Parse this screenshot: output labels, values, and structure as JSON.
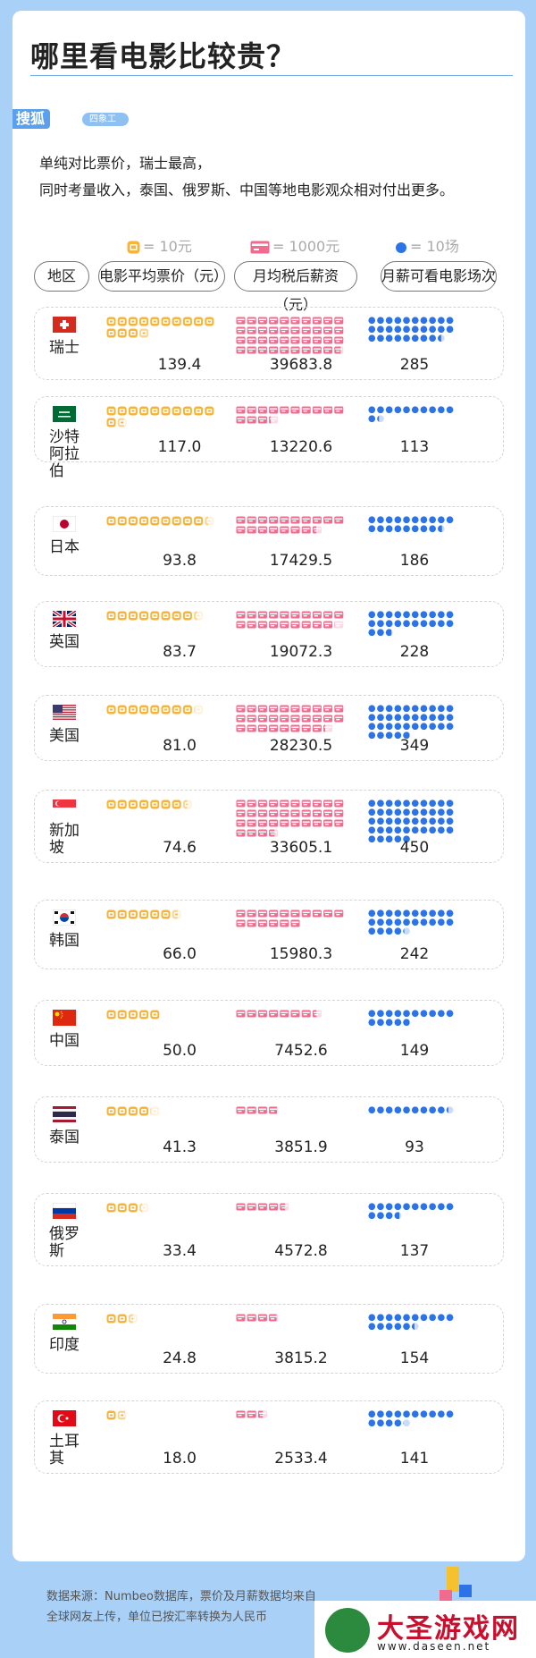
{
  "title": "哪里看电影比较贵？",
  "brand": {
    "logo": "搜狐",
    "studio": "四象工作室"
  },
  "subtitle": [
    "单纯对比票价，瑞士最高，",
    "同时考量收入，泰国、俄罗斯、中国等地电影观众相对付出更多。"
  ],
  "legend": {
    "ticket": "= 10元",
    "salary": "= 1000元",
    "movies": "= 10场"
  },
  "columns": [
    "地区",
    "电影平均票价（元）",
    "月均税后薪资（元）",
    "月薪可看电影场次"
  ],
  "colors": {
    "ticket": "#f6b43a",
    "salary": "#f06b8e",
    "movies": "#2d73e8",
    "accent": "#5aa0ec"
  },
  "chart_data": {
    "type": "table",
    "title": "哪里看电影比较贵？",
    "categories": [
      "瑞士",
      "沙特阿拉伯",
      "日本",
      "英国",
      "美国",
      "新加坡",
      "韩国",
      "中国",
      "泰国",
      "俄罗斯",
      "印度",
      "土耳其"
    ],
    "series": [
      {
        "name": "电影平均票价（元）",
        "unit_per_icon": 10,
        "values": [
          139.4,
          117.0,
          93.8,
          83.7,
          81.0,
          74.6,
          66.0,
          50.0,
          41.3,
          33.4,
          24.8,
          18.0
        ]
      },
      {
        "name": "月均税后薪资（元）",
        "unit_per_icon": 1000,
        "values": [
          39683.8,
          13220.6,
          17429.5,
          19072.3,
          28230.5,
          33605.1,
          15980.3,
          7452.6,
          3851.9,
          4572.8,
          3815.2,
          2533.4
        ]
      },
      {
        "name": "月薪可看电影场次",
        "unit_per_icon": 10,
        "values": [
          285,
          113,
          186,
          228,
          349,
          450,
          242,
          149,
          93,
          137,
          154,
          141
        ]
      }
    ],
    "value_labels": [
      [
        "139.4",
        "39683.8",
        "285"
      ],
      [
        "117.0",
        "13220.6",
        "113"
      ],
      [
        "93.8",
        "17429.5",
        "186"
      ],
      [
        "83.7",
        "19072.3",
        "228"
      ],
      [
        "81.0",
        "28230.5",
        "349"
      ],
      [
        "74.6",
        "33605.1",
        "450"
      ],
      [
        "66.0",
        "15980.3",
        "242"
      ],
      [
        "50.0",
        "7452.6",
        "149"
      ],
      [
        "41.3",
        "3851.9",
        "93"
      ],
      [
        "33.4",
        "4572.8",
        "137"
      ],
      [
        "24.8",
        "3815.2",
        "154"
      ],
      [
        "18.0",
        "2533.4",
        "141"
      ]
    ]
  },
  "countries": [
    {
      "name": "瑞士",
      "flag": "switzerland-flag"
    },
    {
      "name": "沙特阿拉伯",
      "flag": "saudi-arabia-flag"
    },
    {
      "name": "日本",
      "flag": "japan-flag"
    },
    {
      "name": "英国",
      "flag": "uk-flag"
    },
    {
      "name": "美国",
      "flag": "usa-flag"
    },
    {
      "name": "新加坡",
      "flag": "singapore-flag"
    },
    {
      "name": "韩国",
      "flag": "korea-flag"
    },
    {
      "name": "中国",
      "flag": "china-flag"
    },
    {
      "name": "泰国",
      "flag": "thailand-flag"
    },
    {
      "name": "俄罗斯",
      "flag": "russia-flag"
    },
    {
      "name": "印度",
      "flag": "india-flag"
    },
    {
      "name": "土耳其",
      "flag": "turkey-flag"
    }
  ],
  "footer": [
    "数据来源：Numbeo数据库，票价及月薪数据均来自",
    "全球网友上传，单位已按汇率转换为人民币"
  ],
  "watermark": {
    "text": "大圣游戏网",
    "url": "www.daseen.net"
  }
}
